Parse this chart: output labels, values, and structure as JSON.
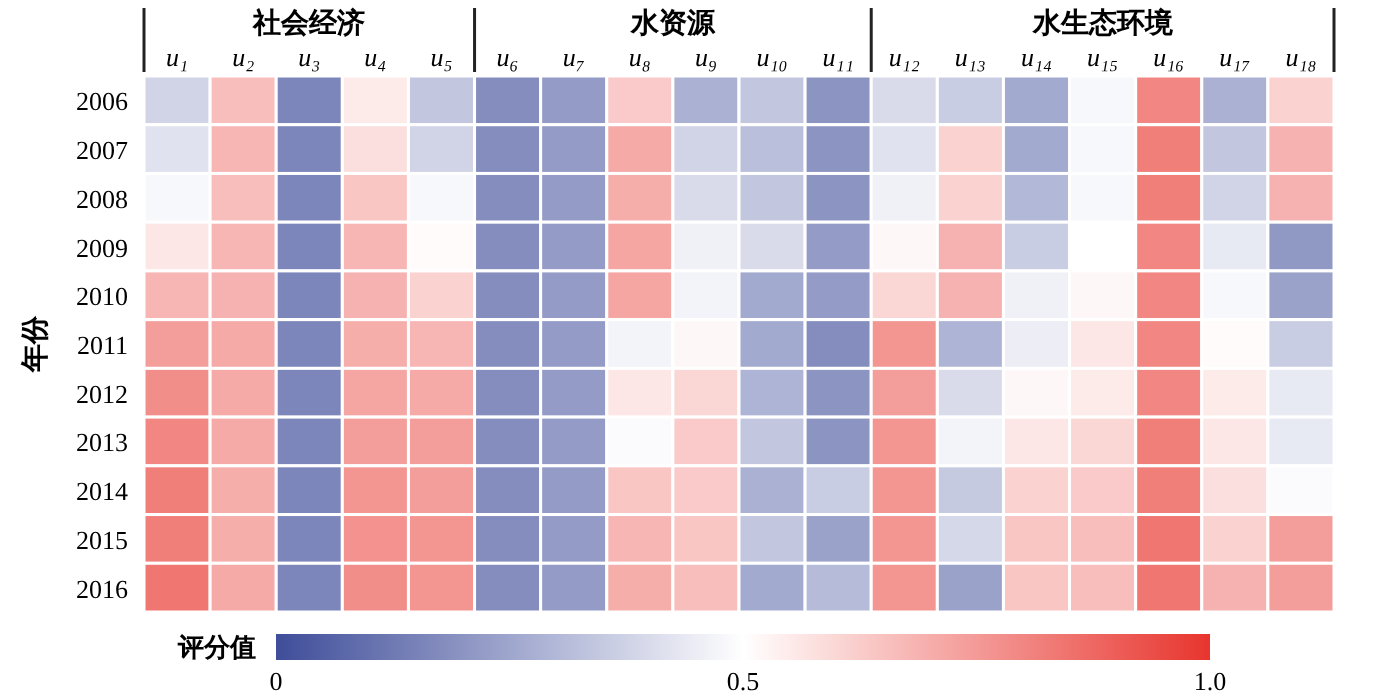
{
  "chart_data": {
    "type": "heatmap",
    "ylabel": "年份",
    "clabel": "评分值",
    "categories": [
      "u₁",
      "u₂",
      "u₃",
      "u₄",
      "u₅",
      "u₆",
      "u₇",
      "u₈",
      "u₉",
      "u₁₀",
      "u₁₁",
      "u₁₂",
      "u₁₃",
      "u₁₄",
      "u₁₅",
      "u₁₆",
      "u₁₇",
      "u₁₈"
    ],
    "y_categories": [
      "2006",
      "2007",
      "2008",
      "2009",
      "2010",
      "2011",
      "2012",
      "2013",
      "2014",
      "2015",
      "2016"
    ],
    "annotations": [
      "社会经济",
      "水资源",
      "水生态环境"
    ],
    "clim": [
      0,
      1
    ],
    "cticks": [
      0,
      0.5,
      {
        "value": 1,
        "label": "1.0"
      }
    ],
    "cells": [
      [
        0.38,
        0.66,
        0.16,
        0.55,
        0.34,
        0.18,
        0.22,
        0.63,
        0.28,
        0.34,
        0.2,
        0.4,
        0.36,
        0.26,
        0.48,
        0.8,
        0.28,
        0.61
      ],
      [
        0.42,
        0.68,
        0.16,
        0.58,
        0.38,
        0.18,
        0.22,
        0.71,
        0.38,
        0.32,
        0.2,
        0.42,
        0.61,
        0.26,
        0.48,
        0.82,
        0.34,
        0.69
      ],
      [
        0.48,
        0.66,
        0.16,
        0.64,
        0.48,
        0.18,
        0.22,
        0.7,
        0.4,
        0.34,
        0.2,
        0.46,
        0.61,
        0.3,
        0.48,
        0.82,
        0.38,
        0.69
      ],
      [
        0.56,
        0.68,
        0.16,
        0.68,
        0.51,
        0.18,
        0.22,
        0.72,
        0.46,
        0.4,
        0.22,
        0.52,
        0.69,
        0.36,
        0.5,
        0.8,
        0.44,
        0.21
      ],
      [
        0.68,
        0.69,
        0.16,
        0.69,
        0.61,
        0.18,
        0.22,
        0.72,
        0.47,
        0.26,
        0.22,
        0.6,
        0.69,
        0.46,
        0.52,
        0.8,
        0.48,
        0.24
      ],
      [
        0.74,
        0.71,
        0.16,
        0.7,
        0.68,
        0.18,
        0.22,
        0.47,
        0.52,
        0.26,
        0.18,
        0.76,
        0.29,
        0.45,
        0.56,
        0.8,
        0.51,
        0.36
      ],
      [
        0.78,
        0.71,
        0.16,
        0.72,
        0.71,
        0.18,
        0.22,
        0.56,
        0.6,
        0.29,
        0.2,
        0.74,
        0.4,
        0.52,
        0.55,
        0.8,
        0.55,
        0.44
      ],
      [
        0.8,
        0.71,
        0.16,
        0.74,
        0.74,
        0.18,
        0.22,
        0.49,
        0.63,
        0.34,
        0.2,
        0.76,
        0.47,
        0.56,
        0.6,
        0.82,
        0.56,
        0.44
      ],
      [
        0.82,
        0.7,
        0.16,
        0.76,
        0.74,
        0.18,
        0.22,
        0.64,
        0.63,
        0.28,
        0.36,
        0.76,
        0.35,
        0.61,
        0.63,
        0.82,
        0.58,
        0.49
      ],
      [
        0.82,
        0.7,
        0.16,
        0.77,
        0.76,
        0.18,
        0.22,
        0.68,
        0.64,
        0.34,
        0.24,
        0.76,
        0.39,
        0.64,
        0.66,
        0.84,
        0.61,
        0.74
      ],
      [
        0.84,
        0.71,
        0.16,
        0.78,
        0.76,
        0.18,
        0.22,
        0.7,
        0.66,
        0.26,
        0.31,
        0.76,
        0.24,
        0.64,
        0.66,
        0.84,
        0.69,
        0.74
      ]
    ]
  }
}
